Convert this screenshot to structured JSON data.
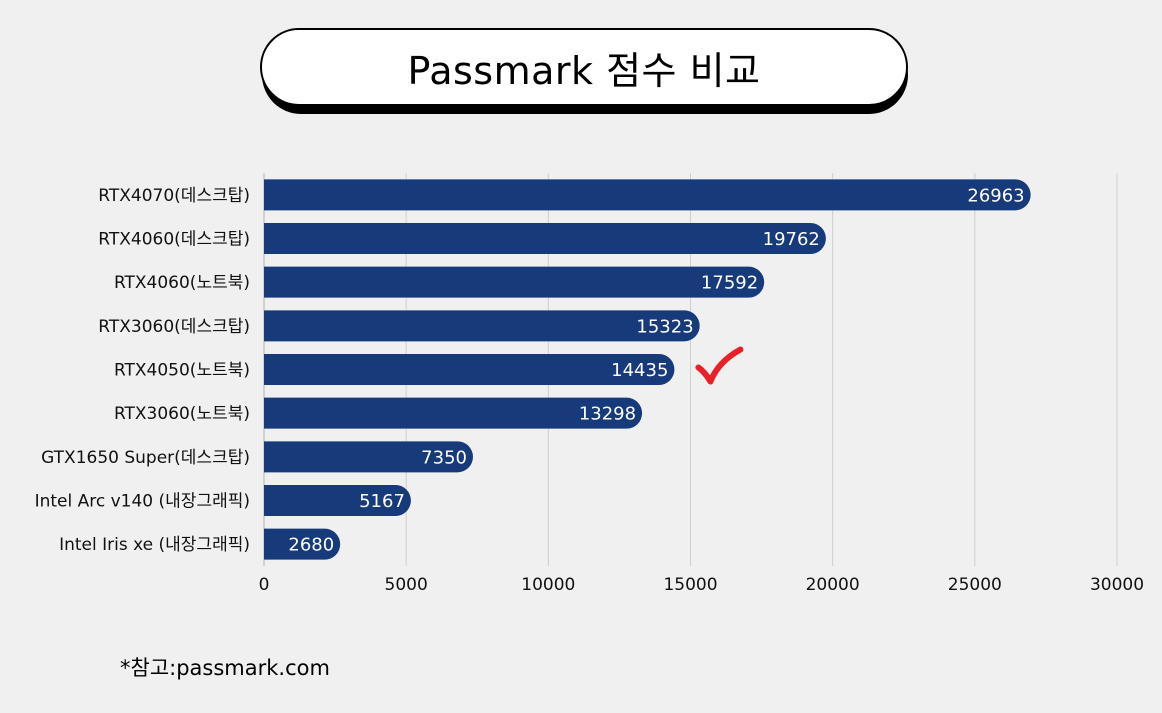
{
  "title": "Passmark 점수 비교",
  "note": "*참고:passmark.com",
  "chart_data": {
    "type": "bar",
    "orientation": "horizontal",
    "categories": [
      "RTX4070(데스크탑)",
      "RTX4060(데스크탑)",
      "RTX4060(노트북)",
      "RTX3060(데스크탑)",
      "RTX4050(노트북)",
      "RTX3060(노트북)",
      "GTX1650 Super(데스크탑)",
      "Intel Arc v140 (내장그래픽)",
      "Intel Iris xe (내장그래픽)"
    ],
    "values": [
      26963,
      19762,
      17592,
      15323,
      14435,
      13298,
      7350,
      5167,
      2680
    ],
    "xlim": [
      0,
      30000
    ],
    "xticks": [
      0,
      5000,
      10000,
      15000,
      20000,
      25000,
      30000
    ],
    "grid": true,
    "bar_color": "#173a7a",
    "highlight_index": 4,
    "highlight_mark": "checkmark-icon",
    "highlight_color": "#e8202a"
  }
}
